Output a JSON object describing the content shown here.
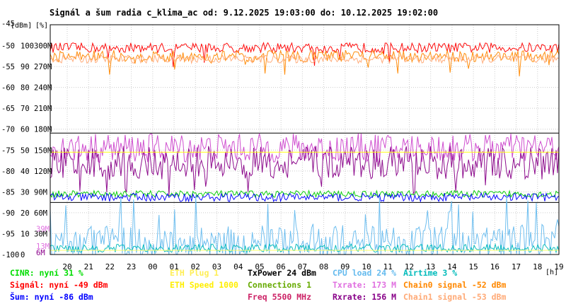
{
  "chart_data": {
    "type": "line",
    "title": "Signál a šum radia c_klima_ac od: 9.12.2025 19:03:00 do: 10.12.2025 19:02:00",
    "axis_unit_labels": [
      "[dBm]",
      "[%]",
      "[h]"
    ],
    "y_dbm_ticks": [
      "-45",
      "-50",
      "-55",
      "-60",
      "-65",
      "-70",
      "-75",
      "-80",
      "-85",
      "-90",
      "-95",
      "-100"
    ],
    "y_pct_ticks": [
      "100",
      "90",
      "80",
      "70",
      "60",
      "50",
      "40",
      "30",
      "20",
      "10",
      "0"
    ],
    "y_rate_ticks": [
      "300M",
      "270M",
      "240M",
      "210M",
      "180M",
      "150M",
      "120M",
      "90M",
      "60M",
      "30M"
    ],
    "y_rate_colored_ticks": [
      {
        "label": "39M",
        "color": "#e070e0"
      },
      {
        "label": "13M",
        "color": "#e070e0"
      },
      {
        "label": "6M",
        "color": "#8b008b"
      }
    ],
    "x_ticks": [
      "20",
      "21",
      "22",
      "23",
      "00",
      "01",
      "02",
      "03",
      "04",
      "05",
      "06",
      "07",
      "08",
      "09",
      "10",
      "11",
      "12",
      "13",
      "14",
      "15",
      "16",
      "17",
      "18",
      "19"
    ],
    "ylim_dbm": [
      -100,
      -45
    ],
    "grid": true,
    "series": [
      {
        "key": "signal",
        "color": "#ff0000",
        "level": -50.5,
        "spread": 1.2
      },
      {
        "key": "chain0",
        "color": "#ff8800",
        "level": -52.5,
        "spread": 1.4
      },
      {
        "key": "chain1",
        "color": "#ffaa77",
        "level": -53.2,
        "spread": 1.0
      },
      {
        "key": "txrate",
        "color": "#cc44cc",
        "level": -74.5,
        "spread": 3.5
      },
      {
        "key": "rxrate",
        "color": "#880088",
        "level": -78.0,
        "spread": 4.0
      },
      {
        "key": "cinr",
        "color": "#00cc00",
        "level": -85.5,
        "spread": 0.8
      },
      {
        "key": "noise",
        "color": "#0000ff",
        "level": -86.3,
        "spread": 1.0
      },
      {
        "key": "cpu",
        "color": "#66bbee",
        "level": -97.0,
        "spread": 4.0
      },
      {
        "key": "airtime",
        "color": "#00bbbb",
        "level": -98.5,
        "spread": 1.0
      },
      {
        "key": "eth_speed",
        "color": "#ffff00",
        "level": -75.5,
        "spread": 0
      },
      {
        "key": "eth_plug",
        "color": "#ffff66",
        "level": -99.0,
        "spread": 0
      }
    ],
    "legend": [
      [
        {
          "text": "CINR: nyní 31 %",
          "color": "#00dd00"
        },
        {
          "text": "Signál: nyní -49 dBm",
          "color": "#ff0000"
        },
        {
          "text": "Šum: nyní -86 dBm",
          "color": "#0000ff"
        }
      ],
      [
        {
          "text": "ETH Plug 1",
          "color": "#ffee55"
        },
        {
          "text": "ETH Speed 1000",
          "color": "#ffee00"
        }
      ],
      [
        {
          "text": "TxPower 24 dBm",
          "color": "#000000"
        },
        {
          "text": "Connections 1",
          "color": "#66aa00"
        },
        {
          "text": "Freq 5500 MHz",
          "color": "#cc2266"
        }
      ],
      [
        {
          "text": "CPU load 24 %",
          "color": "#66bbee"
        },
        {
          "text": "Txrate: 173 M",
          "color": "#e070e0"
        },
        {
          "text": "Rxrate: 156 M",
          "color": "#880088"
        }
      ],
      [
        {
          "text": "Airtime 3 %",
          "color": "#00bbbb"
        },
        {
          "text": "Chain0 signal -52 dBm",
          "color": "#ff8800"
        },
        {
          "text": "Chain1 signal -53 dBm",
          "color": "#ffaa77"
        }
      ]
    ]
  }
}
